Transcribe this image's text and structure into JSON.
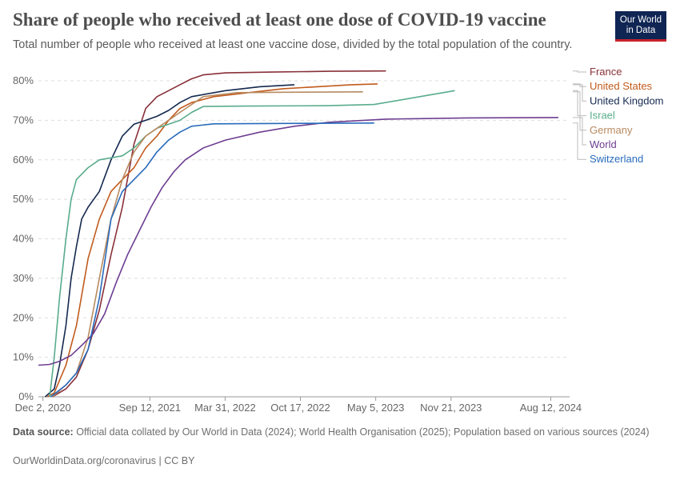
{
  "header": {
    "title": "Share of people who received at least one dose of COVID-19 vaccine",
    "subtitle": "Total number of people who received at least one vaccine dose, divided by the total population of the country."
  },
  "logo": {
    "line1": "Our World",
    "line2": "in Data"
  },
  "footer": {
    "source_label": "Data source:",
    "source_text": "Official data collated by Our World in Data (2024); World Health Organisation (2025); Population based on various sources (2024)",
    "credit": "OurWorldinData.org/coronavirus | CC BY"
  },
  "colors": {
    "France": "#883039",
    "United States": "#c15b1d",
    "United Kingdom": "#14294f",
    "Israel": "#58ac8c",
    "Germany": "#b88a60",
    "World": "#6d3e91",
    "Switzerland": "#286bbb",
    "grid": "#dddddd",
    "axis": "#666666"
  },
  "chart_data": {
    "type": "line",
    "y_unit": "%",
    "ylim": [
      0,
      80
    ],
    "xlim": [
      "2020-11-20",
      "2024-10-01"
    ],
    "y_ticks": [
      "0%",
      "10%",
      "20%",
      "30%",
      "40%",
      "50%",
      "60%",
      "70%",
      "80%"
    ],
    "x_ticks": [
      {
        "date": "2020-12-02",
        "label": "Dec 2, 2020"
      },
      {
        "date": "2021-09-12",
        "label": "Sep 12, 2021"
      },
      {
        "date": "2022-03-31",
        "label": "Mar 31, 2022"
      },
      {
        "date": "2022-10-17",
        "label": "Oct 17, 2022"
      },
      {
        "date": "2023-05-05",
        "label": "May 5, 2023"
      },
      {
        "date": "2023-11-21",
        "label": "Nov 21, 2023"
      },
      {
        "date": "2024-08-12",
        "label": "Aug 12, 2024"
      }
    ],
    "grid": true,
    "legend_placement": "right",
    "series": [
      {
        "name": "France",
        "points": [
          [
            "2020-12-27",
            0
          ],
          [
            "2021-02-01",
            2
          ],
          [
            "2021-03-01",
            5
          ],
          [
            "2021-04-01",
            12
          ],
          [
            "2021-05-01",
            22
          ],
          [
            "2021-06-01",
            36
          ],
          [
            "2021-07-01",
            48
          ],
          [
            "2021-08-01",
            64
          ],
          [
            "2021-09-01",
            73
          ],
          [
            "2021-10-01",
            76
          ],
          [
            "2021-11-01",
            77.5
          ],
          [
            "2021-12-01",
            79
          ],
          [
            "2022-01-01",
            80.5
          ],
          [
            "2022-02-01",
            81.5
          ],
          [
            "2022-04-01",
            82
          ],
          [
            "2022-08-01",
            82.2
          ],
          [
            "2023-01-01",
            82.4
          ],
          [
            "2023-06-01",
            82.5
          ]
        ]
      },
      {
        "name": "United States",
        "points": [
          [
            "2020-12-14",
            0
          ],
          [
            "2021-01-01",
            1
          ],
          [
            "2021-02-01",
            8
          ],
          [
            "2021-03-01",
            18
          ],
          [
            "2021-04-01",
            35
          ],
          [
            "2021-05-01",
            45
          ],
          [
            "2021-06-01",
            52
          ],
          [
            "2021-07-01",
            55
          ],
          [
            "2021-08-01",
            58
          ],
          [
            "2021-09-01",
            63
          ],
          [
            "2021-10-01",
            66
          ],
          [
            "2021-11-01",
            70
          ],
          [
            "2021-12-01",
            73
          ],
          [
            "2022-01-01",
            74.5
          ],
          [
            "2022-03-01",
            76
          ],
          [
            "2022-06-01",
            77
          ],
          [
            "2022-09-01",
            78
          ],
          [
            "2022-12-01",
            78.5
          ],
          [
            "2023-03-01",
            79
          ],
          [
            "2023-05-10",
            79.2
          ]
        ]
      },
      {
        "name": "United Kingdom",
        "points": [
          [
            "2020-12-08",
            0
          ],
          [
            "2021-01-01",
            2
          ],
          [
            "2021-01-15",
            8
          ],
          [
            "2021-02-01",
            18
          ],
          [
            "2021-02-15",
            30
          ],
          [
            "2021-03-01",
            38
          ],
          [
            "2021-03-15",
            45
          ],
          [
            "2021-04-01",
            48
          ],
          [
            "2021-05-01",
            52
          ],
          [
            "2021-06-01",
            60
          ],
          [
            "2021-07-01",
            66
          ],
          [
            "2021-08-01",
            69
          ],
          [
            "2021-09-01",
            70
          ],
          [
            "2021-10-01",
            71
          ],
          [
            "2021-11-01",
            72.5
          ],
          [
            "2021-12-01",
            74.5
          ],
          [
            "2022-01-01",
            76
          ],
          [
            "2022-04-01",
            77.5
          ],
          [
            "2022-07-01",
            78.5
          ],
          [
            "2022-10-01",
            79
          ]
        ]
      },
      {
        "name": "Israel",
        "points": [
          [
            "2020-12-20",
            0
          ],
          [
            "2021-01-01",
            10
          ],
          [
            "2021-01-15",
            25
          ],
          [
            "2021-02-01",
            40
          ],
          [
            "2021-02-15",
            50
          ],
          [
            "2021-03-01",
            55
          ],
          [
            "2021-04-01",
            58
          ],
          [
            "2021-05-01",
            60
          ],
          [
            "2021-07-01",
            61
          ],
          [
            "2021-08-01",
            63
          ],
          [
            "2021-09-01",
            66
          ],
          [
            "2021-10-01",
            68
          ],
          [
            "2021-11-01",
            69
          ],
          [
            "2021-12-01",
            70
          ],
          [
            "2022-01-01",
            72
          ],
          [
            "2022-02-01",
            73.5
          ],
          [
            "2022-06-01",
            73.6
          ],
          [
            "2023-01-01",
            73.7
          ],
          [
            "2023-05-01",
            74
          ],
          [
            "2023-12-01",
            77.5
          ]
        ]
      },
      {
        "name": "Germany",
        "points": [
          [
            "2020-12-27",
            0
          ],
          [
            "2021-02-01",
            3
          ],
          [
            "2021-03-01",
            6
          ],
          [
            "2021-04-01",
            15
          ],
          [
            "2021-05-01",
            30
          ],
          [
            "2021-06-01",
            45
          ],
          [
            "2021-07-01",
            55
          ],
          [
            "2021-08-01",
            62
          ],
          [
            "2021-09-01",
            66
          ],
          [
            "2021-10-01",
            68
          ],
          [
            "2021-11-01",
            70
          ],
          [
            "2021-12-01",
            72
          ],
          [
            "2022-01-01",
            74
          ],
          [
            "2022-02-01",
            76
          ],
          [
            "2022-05-01",
            77
          ],
          [
            "2022-09-01",
            77.1
          ],
          [
            "2023-04-01",
            77.2
          ]
        ]
      },
      {
        "name": "World",
        "points": [
          [
            "2020-11-20",
            8
          ],
          [
            "2020-12-20",
            8.2
          ],
          [
            "2021-01-15",
            9
          ],
          [
            "2021-02-15",
            10.5
          ],
          [
            "2021-03-15",
            13
          ],
          [
            "2021-04-15",
            16
          ],
          [
            "2021-05-15",
            21
          ],
          [
            "2021-06-15",
            29
          ],
          [
            "2021-07-15",
            36
          ],
          [
            "2021-08-15",
            42
          ],
          [
            "2021-09-15",
            48
          ],
          [
            "2021-10-15",
            53
          ],
          [
            "2021-11-15",
            57
          ],
          [
            "2021-12-15",
            60
          ],
          [
            "2022-02-01",
            63
          ],
          [
            "2022-04-01",
            65
          ],
          [
            "2022-07-01",
            67
          ],
          [
            "2022-10-01",
            68.5
          ],
          [
            "2023-01-01",
            69.5
          ],
          [
            "2023-06-01",
            70.3
          ],
          [
            "2024-01-01",
            70.6
          ],
          [
            "2024-09-01",
            70.7
          ]
        ]
      },
      {
        "name": "Switzerland",
        "points": [
          [
            "2020-12-23",
            0
          ],
          [
            "2021-02-01",
            3
          ],
          [
            "2021-03-01",
            6
          ],
          [
            "2021-04-01",
            12
          ],
          [
            "2021-05-01",
            25
          ],
          [
            "2021-06-01",
            45
          ],
          [
            "2021-07-01",
            52
          ],
          [
            "2021-08-01",
            55
          ],
          [
            "2021-09-01",
            58
          ],
          [
            "2021-10-01",
            62
          ],
          [
            "2021-11-01",
            65
          ],
          [
            "2021-12-01",
            67
          ],
          [
            "2022-01-01",
            68.5
          ],
          [
            "2022-03-01",
            69.1
          ],
          [
            "2022-09-01",
            69.2
          ],
          [
            "2023-05-01",
            69.3
          ]
        ]
      }
    ]
  }
}
